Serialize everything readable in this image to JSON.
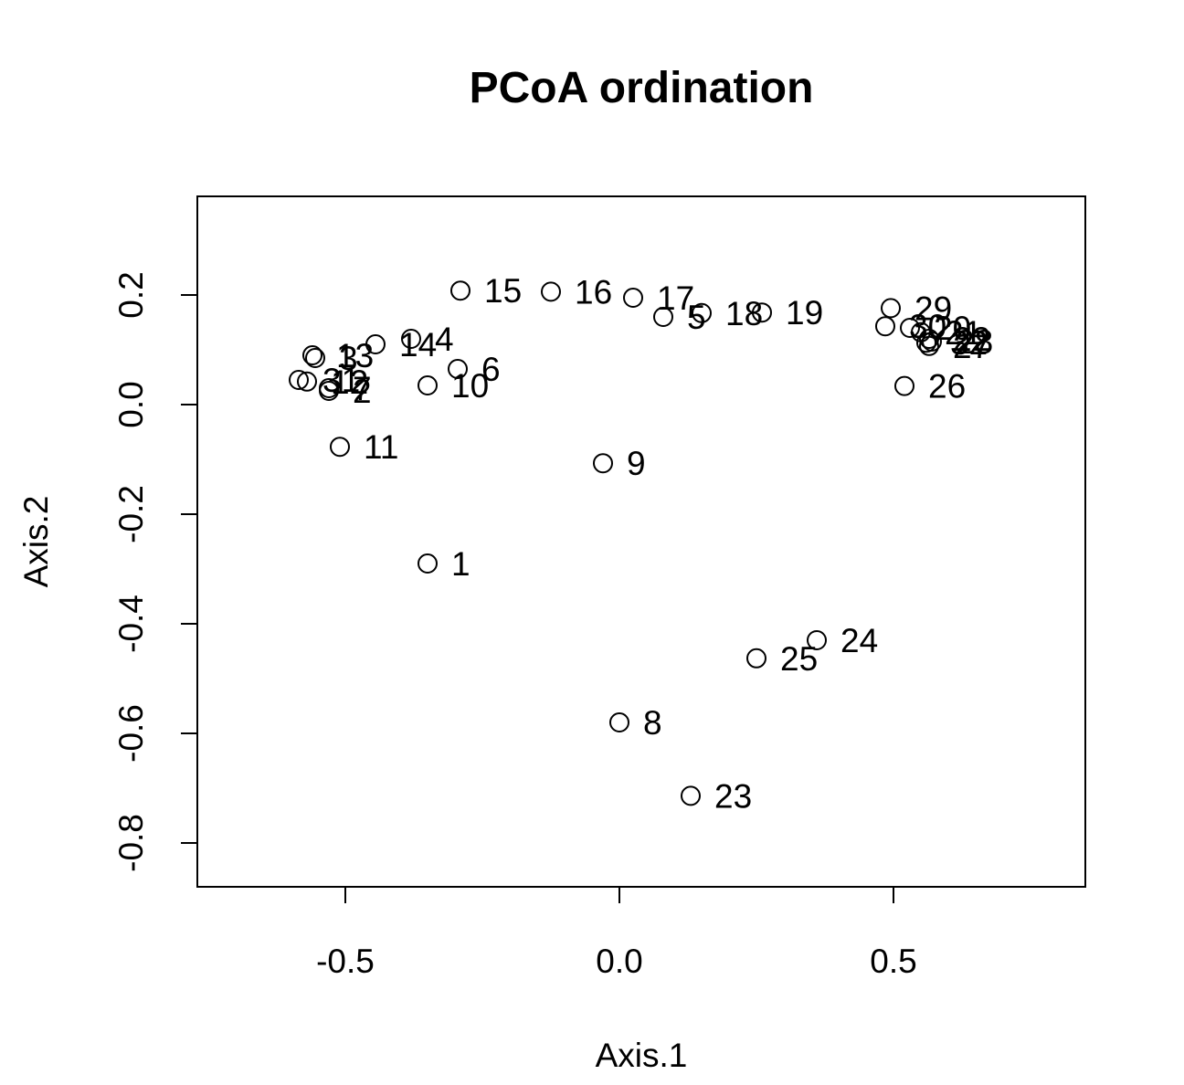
{
  "chart_data": {
    "type": "scatter",
    "title": "PCoA ordination",
    "xlabel": "Axis.1",
    "ylabel": "Axis.2",
    "xlim": [
      -0.77,
      0.85
    ],
    "ylim": [
      -0.88,
      0.38
    ],
    "x_ticks": [
      -0.5,
      0.0,
      0.5
    ],
    "x_tick_labels": [
      "-0.5",
      "0.0",
      "0.5"
    ],
    "y_ticks": [
      0.2,
      0.0,
      -0.2,
      -0.4,
      -0.6,
      -0.8
    ],
    "y_tick_labels": [
      "0.2",
      "0.0",
      "-0.2",
      "-0.4",
      "-0.6",
      "-0.8"
    ],
    "grid": false,
    "legend": "none",
    "marker": "open-circle",
    "points": [
      {
        "label": "1",
        "x": -0.35,
        "y": -0.29
      },
      {
        "label": "2",
        "x": -0.53,
        "y": 0.025
      },
      {
        "label": "3",
        "x": -0.555,
        "y": 0.085
      },
      {
        "label": "4",
        "x": -0.38,
        "y": 0.12
      },
      {
        "label": "5",
        "x": 0.08,
        "y": 0.16
      },
      {
        "label": "6",
        "x": -0.295,
        "y": 0.065
      },
      {
        "label": "7",
        "x": -0.53,
        "y": 0.03
      },
      {
        "label": "8",
        "x": 0.0,
        "y": -0.58
      },
      {
        "label": "9",
        "x": -0.03,
        "y": -0.107
      },
      {
        "label": "10",
        "x": -0.35,
        "y": 0.035
      },
      {
        "label": "11",
        "x": -0.51,
        "y": -0.077
      },
      {
        "label": "12",
        "x": -0.57,
        "y": 0.042
      },
      {
        "label": "13",
        "x": -0.56,
        "y": 0.09
      },
      {
        "label": "14",
        "x": -0.445,
        "y": 0.11
      },
      {
        "label": "15",
        "x": -0.29,
        "y": 0.208
      },
      {
        "label": "16",
        "x": -0.125,
        "y": 0.206
      },
      {
        "label": "17",
        "x": 0.025,
        "y": 0.195
      },
      {
        "label": "18",
        "x": 0.15,
        "y": 0.167
      },
      {
        "label": "19",
        "x": 0.26,
        "y": 0.168
      },
      {
        "label": "20",
        "x": 0.53,
        "y": 0.14
      },
      {
        "label": "21",
        "x": 0.55,
        "y": 0.132
      },
      {
        "label": "22",
        "x": 0.565,
        "y": 0.12
      },
      {
        "label": "23",
        "x": 0.13,
        "y": -0.714
      },
      {
        "label": "24",
        "x": 0.36,
        "y": -0.43
      },
      {
        "label": "25",
        "x": 0.25,
        "y": -0.463
      },
      {
        "label": "26",
        "x": 0.52,
        "y": 0.034
      },
      {
        "label": "27",
        "x": 0.565,
        "y": 0.107
      },
      {
        "label": "28",
        "x": 0.57,
        "y": 0.115
      },
      {
        "label": "29",
        "x": 0.495,
        "y": 0.176
      },
      {
        "label": "30",
        "x": 0.485,
        "y": 0.143
      },
      {
        "label": "31",
        "x": -0.585,
        "y": 0.045
      },
      {
        "label": "32",
        "x": 0.56,
        "y": 0.113
      }
    ]
  }
}
